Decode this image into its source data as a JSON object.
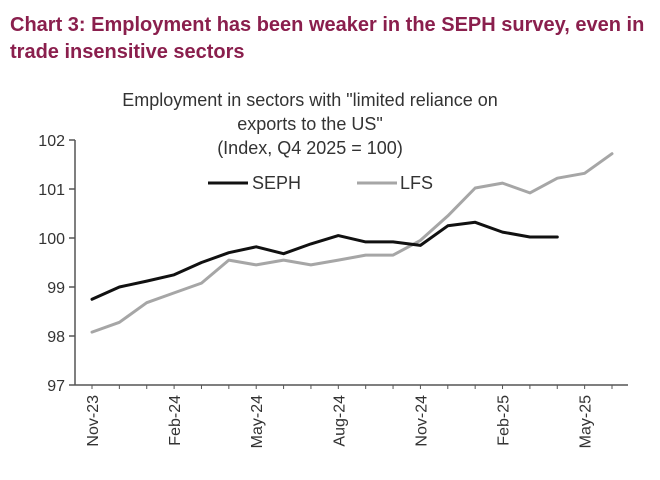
{
  "header": {
    "title": "Chart 3: Employment has been weaker in the SEPH survey, even in trade insensitive sectors"
  },
  "chart_data": {
    "type": "line",
    "title_lines": [
      "Employment in sectors with \"limited reliance on",
      "exports to the US\"",
      "(Index, Q4 2025 = 100)"
    ],
    "x": [
      "Nov-23",
      "Dec-23",
      "Jan-24",
      "Feb-24",
      "Mar-24",
      "Apr-24",
      "May-24",
      "Jun-24",
      "Jul-24",
      "Aug-24",
      "Sep-24",
      "Oct-24",
      "Nov-24",
      "Dec-24",
      "Jan-25",
      "Feb-25",
      "Mar-25",
      "Apr-25",
      "May-25",
      "Jun-25"
    ],
    "x_tick_labels": [
      "Nov-23",
      "Feb-24",
      "May-24",
      "Aug-24",
      "Nov-24",
      "Feb-25",
      "May-25"
    ],
    "y_tick_labels": [
      "97",
      "98",
      "99",
      "100",
      "101",
      "102"
    ],
    "ylim": [
      97,
      102
    ],
    "series": [
      {
        "name": "SEPH",
        "color": "#111111",
        "values": [
          98.75,
          99.0,
          99.12,
          99.25,
          99.5,
          99.7,
          99.82,
          99.68,
          99.88,
          100.05,
          99.92,
          99.92,
          99.85,
          100.25,
          100.32,
          100.12,
          100.02,
          100.02,
          null,
          null
        ]
      },
      {
        "name": "LFS",
        "color": "#a6a6a6",
        "values": [
          98.08,
          98.28,
          98.68,
          98.88,
          99.08,
          99.55,
          99.45,
          99.55,
          99.45,
          99.55,
          99.65,
          99.65,
          99.95,
          100.45,
          101.02,
          101.12,
          100.92,
          101.22,
          101.32,
          101.72
        ]
      }
    ],
    "legend": {
      "placement": "top-center"
    },
    "grid": false
  }
}
